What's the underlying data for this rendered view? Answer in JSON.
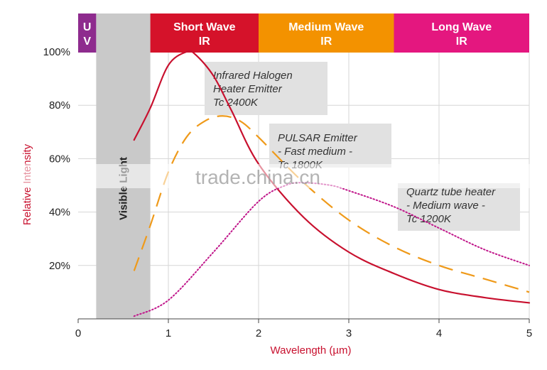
{
  "chart_data": {
    "type": "line",
    "xlabel": "Wavelength (µm)",
    "ylabel": "Relative Intensity",
    "xlim": [
      0,
      5
    ],
    "ylim": [
      0,
      100
    ],
    "x_ticks": [
      "0",
      "1",
      "2",
      "3",
      "4",
      "5"
    ],
    "y_ticks": [
      "20%",
      "40%",
      "60%",
      "80%",
      "100%"
    ],
    "y_tick_values": [
      20,
      40,
      60,
      80,
      100
    ],
    "grid": true,
    "bands": [
      {
        "id": "uv",
        "label_lines": [
          "U",
          "V"
        ],
        "from": 0,
        "to": 0.2,
        "color": "#8e2b8e"
      },
      {
        "id": "visible",
        "label": "Visible Light",
        "from": 0.2,
        "to": 0.8,
        "color": "#c9c9c9"
      },
      {
        "id": "short",
        "label_lines": [
          "Short Wave",
          "IR"
        ],
        "from": 0.8,
        "to": 2.0,
        "color": "#d5122a"
      },
      {
        "id": "medium",
        "label_lines": [
          "Medium Wave",
          "IR"
        ],
        "from": 2.0,
        "to": 3.5,
        "color": "#f39200"
      },
      {
        "id": "long",
        "label_lines": [
          "Long Wave",
          "IR"
        ],
        "from": 3.5,
        "to": 5.0,
        "color": "#e4177f"
      }
    ],
    "series": [
      {
        "name": "Infrared Halogen Heater Emitter Tc 2400K",
        "color": "#c8102e",
        "style": "solid",
        "x": [
          0.62,
          0.8,
          1.0,
          1.2,
          1.3,
          1.5,
          1.7,
          2.0,
          2.5,
          3.0,
          3.5,
          4.0,
          4.5,
          5.0
        ],
        "y": [
          67,
          79,
          95,
          100,
          99,
          91,
          78,
          58,
          38,
          25,
          17,
          11,
          8,
          6
        ]
      },
      {
        "name": "PULSAR Emitter - Fast medium - Tc 1800K",
        "color": "#ef9a1a",
        "style": "dashed",
        "x": [
          0.62,
          0.8,
          1.0,
          1.2,
          1.4,
          1.6,
          1.8,
          2.0,
          2.5,
          3.0,
          3.5,
          4.0,
          4.5,
          5.0
        ],
        "y": [
          18,
          35,
          55,
          68,
          74,
          76,
          74,
          68,
          51,
          37,
          27,
          20,
          15,
          10
        ]
      },
      {
        "name": "Quartz tube heater - Medium wave - Tc 1200K",
        "color": "#c0168a",
        "style": "dotted",
        "x": [
          0.62,
          1.0,
          1.5,
          2.0,
          2.3,
          2.5,
          2.8,
          3.0,
          3.5,
          4.0,
          4.5,
          5.0
        ],
        "y": [
          1,
          7,
          25,
          44,
          50,
          51,
          50,
          48,
          42,
          34,
          26,
          20
        ]
      }
    ],
    "annotations": [
      {
        "id": "halogen",
        "lines": [
          "Infrared Halogen",
          "Heater Emitter",
          "Tc 2400K"
        ]
      },
      {
        "id": "pulsar",
        "lines": [
          "PULSAR Emitter",
          "- Fast medium -",
          "Tc 1800K"
        ]
      },
      {
        "id": "quartz",
        "lines": [
          "Quartz tube heater",
          "- Medium wave -",
          "Tc 1200K"
        ]
      }
    ]
  },
  "watermark": "trade.china.cn"
}
